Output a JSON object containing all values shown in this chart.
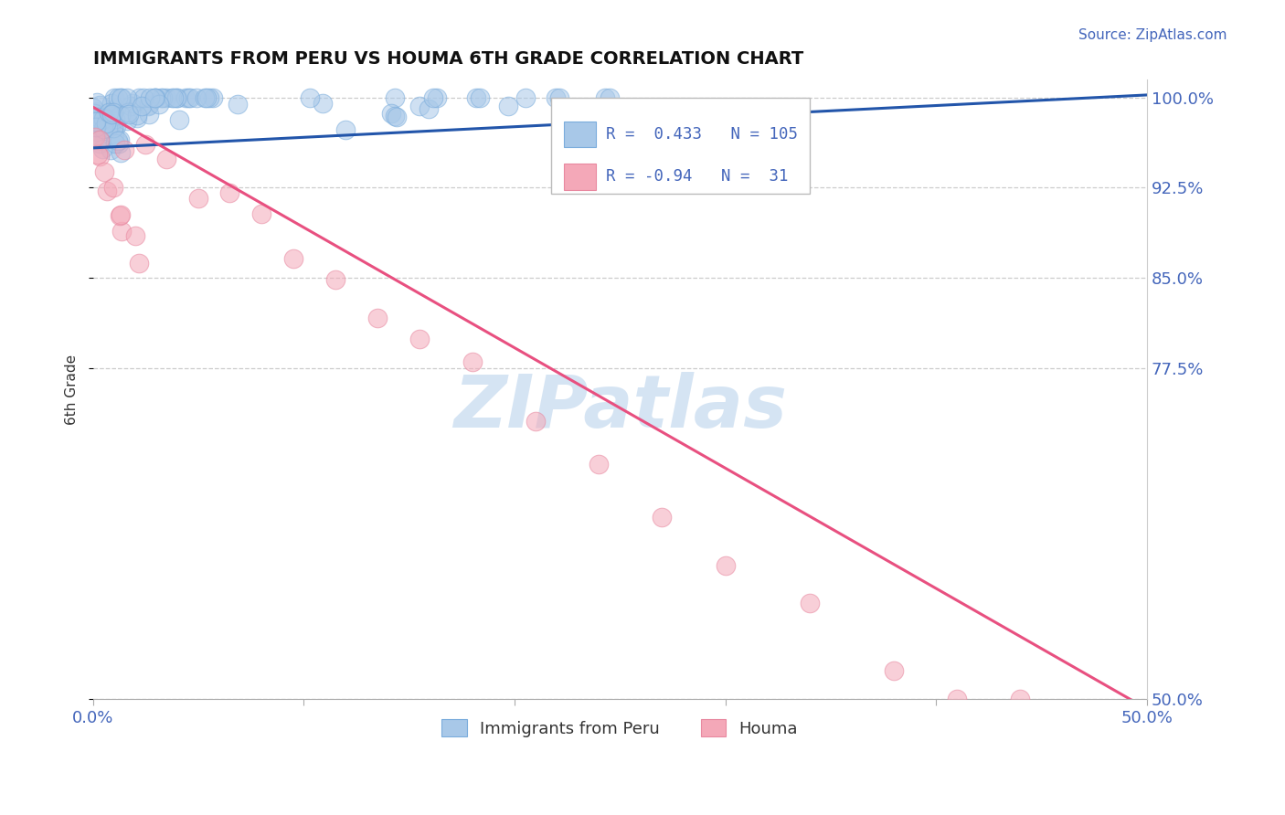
{
  "title": "IMMIGRANTS FROM PERU VS HOUMA 6TH GRADE CORRELATION CHART",
  "source_text": "Source: ZipAtlas.com",
  "ylabel": "6th Grade",
  "xlim": [
    0.0,
    0.5
  ],
  "ylim": [
    0.5,
    1.015
  ],
  "xtick_positions": [
    0.0,
    0.1,
    0.2,
    0.3,
    0.4,
    0.5
  ],
  "xtick_labels": [
    "0.0%",
    "",
    "",
    "",
    "",
    "50.0%"
  ],
  "ytick_positions": [
    0.5,
    0.775,
    0.85,
    0.925,
    1.0
  ],
  "ytick_labels": [
    "50.0%",
    "77.5%",
    "85.0%",
    "92.5%",
    "100.0%"
  ],
  "grid_yticks": [
    1.0,
    0.925,
    0.85,
    0.775,
    0.5
  ],
  "blue_R": 0.433,
  "blue_N": 105,
  "pink_R": -0.94,
  "pink_N": 31,
  "blue_color": "#A8C8E8",
  "pink_color": "#F4A8B8",
  "blue_line_color": "#2255AA",
  "pink_line_color": "#E85080",
  "legend_blue_label": "Immigrants from Peru",
  "legend_pink_label": "Houma",
  "watermark": "ZIPatlas",
  "blue_trendline_x": [
    0.0,
    0.5
  ],
  "blue_trendline_y": [
    0.958,
    1.002
  ],
  "pink_trendline_x": [
    0.0,
    0.5
  ],
  "pink_trendline_y": [
    0.992,
    0.492
  ]
}
